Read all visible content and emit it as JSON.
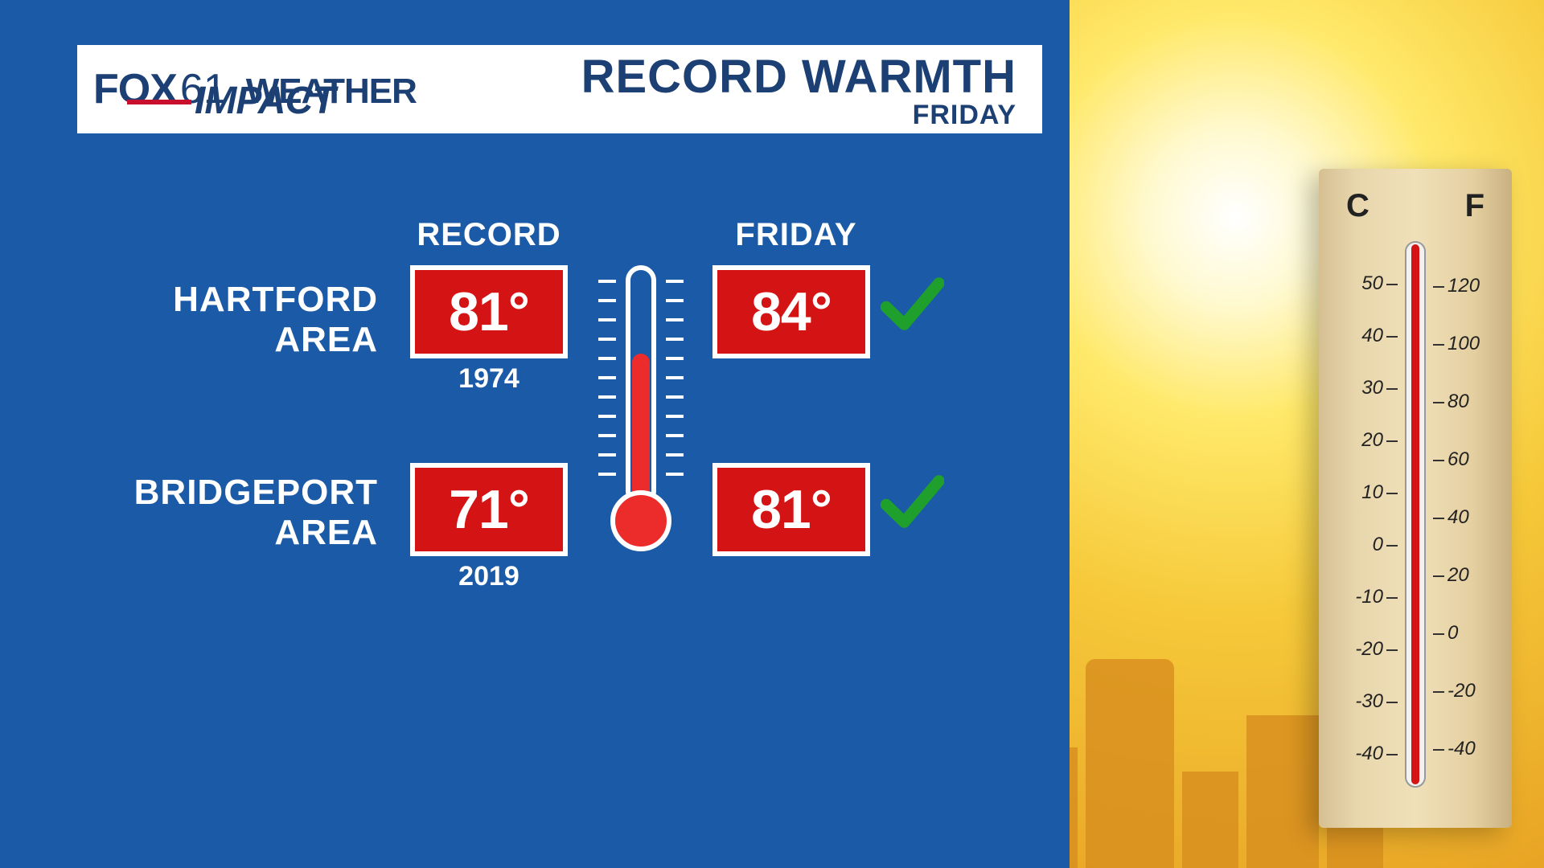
{
  "brand": {
    "network": "FOX",
    "channel": "61",
    "program": "WEATHER",
    "sub": "IMPACT"
  },
  "header": {
    "title": "RECORD WARMTH",
    "subtitle": "FRIDAY"
  },
  "columns": {
    "record": "RECORD",
    "friday": "FRIDAY"
  },
  "rows": [
    {
      "area_line1": "HARTFORD",
      "area_line2": "AREA",
      "record_temp": "81°",
      "record_year": "1974",
      "friday_temp": "84°",
      "broke": true
    },
    {
      "area_line1": "BRIDGEPORT",
      "area_line2": "AREA",
      "record_temp": "71°",
      "record_year": "2019",
      "friday_temp": "81°",
      "broke": true
    }
  ],
  "thermo_photo": {
    "unit_left": "C",
    "unit_right": "F",
    "ticks_c": [
      "50",
      "40",
      "30",
      "20",
      "10",
      "0",
      "-10",
      "-20",
      "-30",
      "-40"
    ],
    "ticks_f": [
      "120",
      "100",
      "80",
      "60",
      "40",
      "20",
      "0",
      "-20",
      "-40"
    ]
  },
  "colors": {
    "panel": "#1b5aa6",
    "box": "#d41414",
    "check": "#1fa02c",
    "brand_text": "#1c3f74",
    "accent": "#c8102e"
  }
}
